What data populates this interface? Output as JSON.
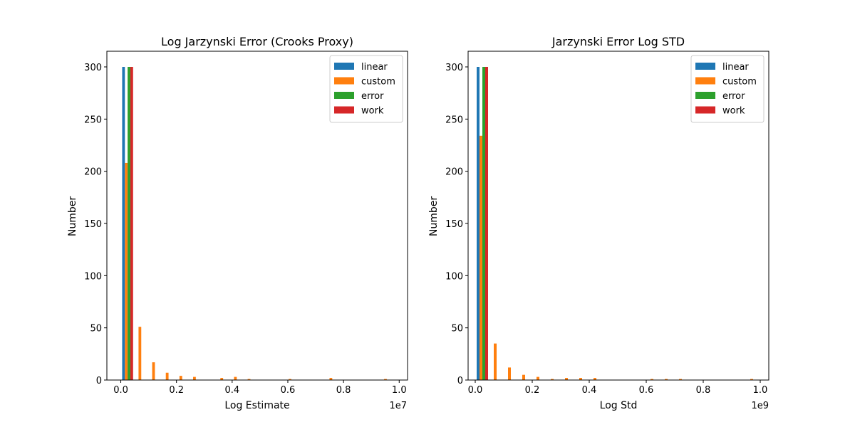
{
  "chart_data": [
    {
      "type": "bar",
      "title": "Log Jarzynski Error (Crooks Proxy)",
      "xlabel": "Log Estimate",
      "ylabel": "Number",
      "x_multiplier": "1e7",
      "xlim": [
        -0.05,
        1.03
      ],
      "ylim": [
        0,
        315
      ],
      "xticks": [
        "0.0",
        "0.2",
        "0.4",
        "0.6",
        "0.8",
        "1.0"
      ],
      "yticks": [
        "0",
        "50",
        "100",
        "150",
        "200",
        "250",
        "300"
      ],
      "grid": false,
      "legend_position": "top-right",
      "bin_start": 0.0,
      "bin_width": 0.049,
      "series": [
        {
          "name": "linear",
          "color": "#1f77b4",
          "bins": [
            0
          ],
          "values": [
            300
          ]
        },
        {
          "name": "custom",
          "color": "#ff7f0e",
          "bins": [
            0,
            1,
            2,
            3,
            4,
            5,
            7,
            8,
            9,
            12,
            15,
            19
          ],
          "values": [
            208,
            51,
            17,
            7,
            4,
            3,
            2,
            3,
            1,
            1,
            2,
            1
          ]
        },
        {
          "name": "error",
          "color": "#2ca02c",
          "bins": [
            0
          ],
          "values": [
            300
          ]
        },
        {
          "name": "work",
          "color": "#d62728",
          "bins": [
            0
          ],
          "values": [
            300
          ]
        }
      ]
    },
    {
      "type": "bar",
      "title": "Jarzynski Error Log STD",
      "xlabel": "Log Std",
      "ylabel": "Number",
      "x_multiplier": "1e9",
      "xlim": [
        -0.025,
        1.03
      ],
      "ylim": [
        0,
        315
      ],
      "xticks": [
        "0.0",
        "0.2",
        "0.4",
        "0.6",
        "0.8",
        "1.0"
      ],
      "yticks": [
        "0",
        "50",
        "100",
        "150",
        "200",
        "250",
        "300"
      ],
      "grid": false,
      "legend_position": "top-right",
      "bin_start": 0.0,
      "bin_width": 0.05,
      "series": [
        {
          "name": "linear",
          "color": "#1f77b4",
          "bins": [
            0
          ],
          "values": [
            300
          ]
        },
        {
          "name": "custom",
          "color": "#ff7f0e",
          "bins": [
            0,
            1,
            2,
            3,
            4,
            5,
            6,
            7,
            8,
            12,
            13,
            14,
            19
          ],
          "values": [
            234,
            35,
            12,
            5,
            3,
            1,
            2,
            2,
            2,
            1,
            1,
            1,
            1
          ]
        },
        {
          "name": "error",
          "color": "#2ca02c",
          "bins": [
            0
          ],
          "values": [
            300
          ]
        },
        {
          "name": "work",
          "color": "#d62728",
          "bins": [
            0
          ],
          "values": [
            300
          ]
        }
      ]
    }
  ]
}
